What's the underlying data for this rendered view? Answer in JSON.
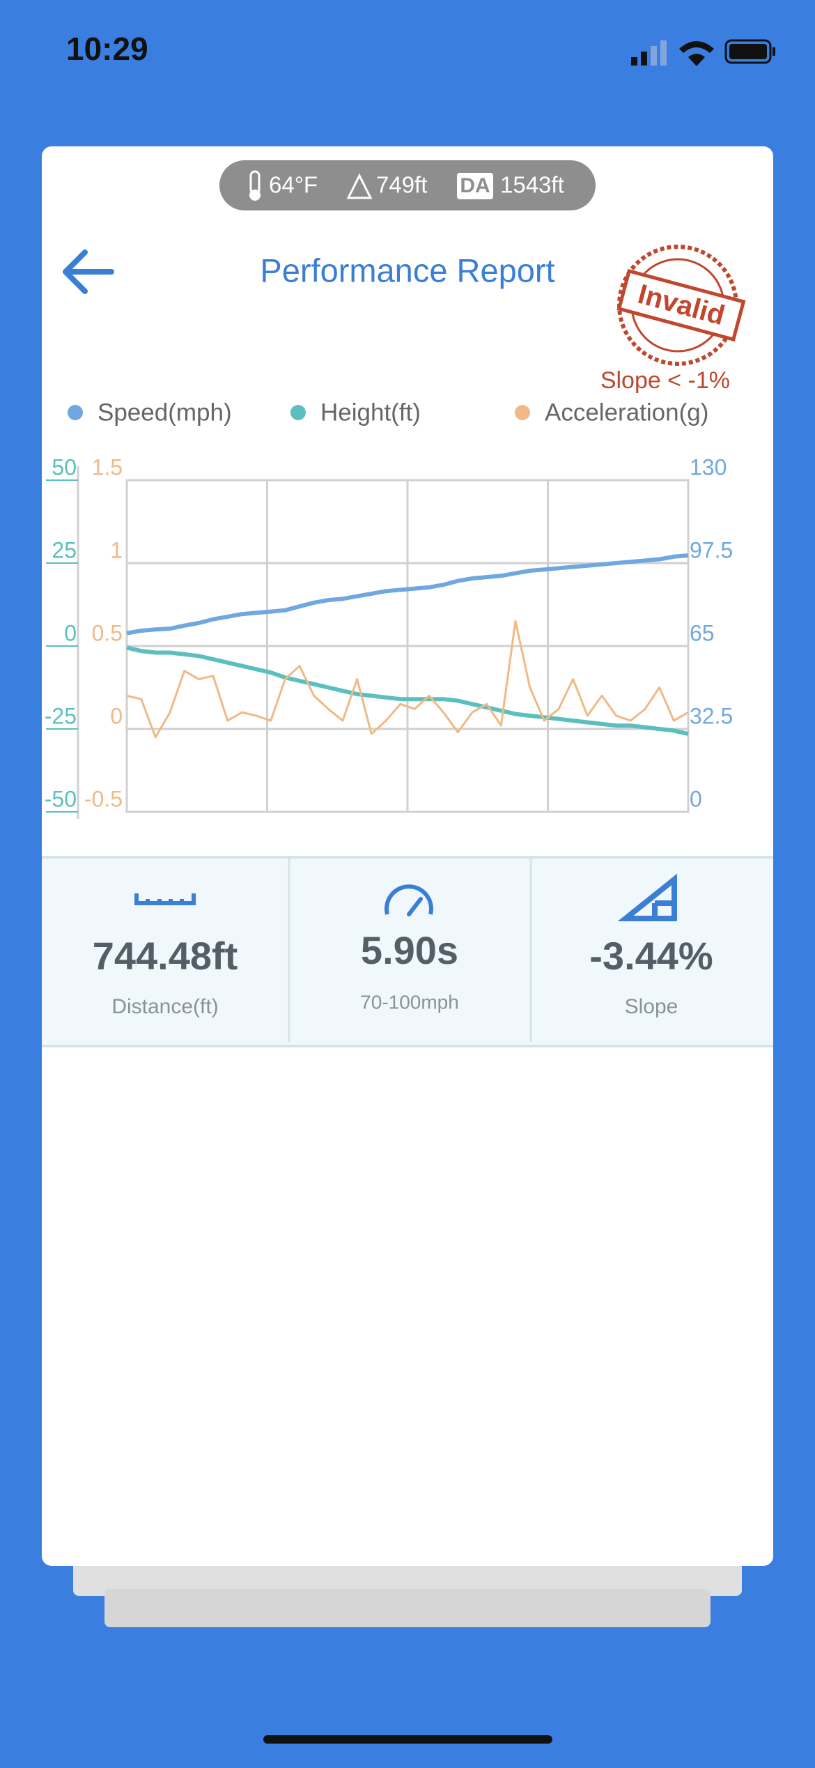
{
  "status_bar": {
    "time": "10:29"
  },
  "conditions": {
    "temperature": "64°F",
    "elevation": "749ft",
    "da_badge": "DA",
    "density_altitude": "1543ft"
  },
  "header": {
    "title": "Performance Report",
    "stamp": "Invalid",
    "stamp_note": "Slope < -1%"
  },
  "chart_data": {
    "type": "line",
    "series": [
      {
        "name": "Speed(mph)",
        "color": "#6fa8e0",
        "axis": "y2",
        "values": [
          70,
          71,
          71.5,
          71.8,
          73,
          74,
          75.5,
          76.5,
          77.5,
          78,
          78.5,
          79,
          80.5,
          82,
          83,
          83.5,
          84.5,
          85.5,
          86.5,
          87,
          87.5,
          88,
          89,
          90.5,
          91.5,
          92,
          92.5,
          93.5,
          94.5,
          95,
          95.5,
          96,
          96.5,
          97,
          97.5,
          98,
          98.5,
          99,
          100,
          100.5
        ]
      },
      {
        "name": "Height(ft)",
        "color": "#5bbfbf",
        "axis": "y",
        "values": [
          -0.5,
          -1.5,
          -2,
          -2,
          -2.5,
          -3,
          -4,
          -5,
          -6,
          -7,
          -8,
          -9.5,
          -10.5,
          -11.5,
          -12.5,
          -13.5,
          -14.5,
          -15,
          -15.5,
          -16,
          -16,
          -16,
          -16,
          -16.5,
          -17.5,
          -18.5,
          -19.5,
          -20.5,
          -21,
          -21.5,
          -22,
          -22.5,
          -23,
          -23.5,
          -24,
          -24,
          -24.5,
          -25,
          -25.5,
          -26.5
        ]
      },
      {
        "name": "Acceleration(g)",
        "color": "#f0b985",
        "axis": "y3",
        "values": [
          0.2,
          0.18,
          -0.05,
          0.1,
          0.35,
          0.3,
          0.32,
          0.05,
          0.1,
          0.08,
          0.05,
          0.3,
          0.38,
          0.2,
          0.12,
          0.05,
          0.3,
          -0.03,
          0.05,
          0.15,
          0.12,
          0.2,
          0.1,
          -0.02,
          0.1,
          0.15,
          0.02,
          0.65,
          0.25,
          0.05,
          0.12,
          0.3,
          0.08,
          0.2,
          0.08,
          0.05,
          0.12,
          0.25,
          0.05,
          0.1
        ]
      }
    ],
    "ylim": [
      -50,
      50
    ],
    "yticks": [
      50,
      25,
      0,
      -25,
      -50
    ],
    "y3lim": [
      -0.5,
      1.5
    ],
    "y3ticks": [
      1.5,
      1,
      0.5,
      0,
      -0.5
    ],
    "y2lim": [
      0,
      130
    ],
    "y2ticks": [
      130,
      97.5,
      65,
      32.5,
      0
    ],
    "grid": true
  },
  "stats": [
    {
      "value": "744.48ft",
      "label": "Distance(ft)"
    },
    {
      "value": "5.90s",
      "label": "70-100mph"
    },
    {
      "value": "-3.44%",
      "label": "Slope"
    }
  ]
}
